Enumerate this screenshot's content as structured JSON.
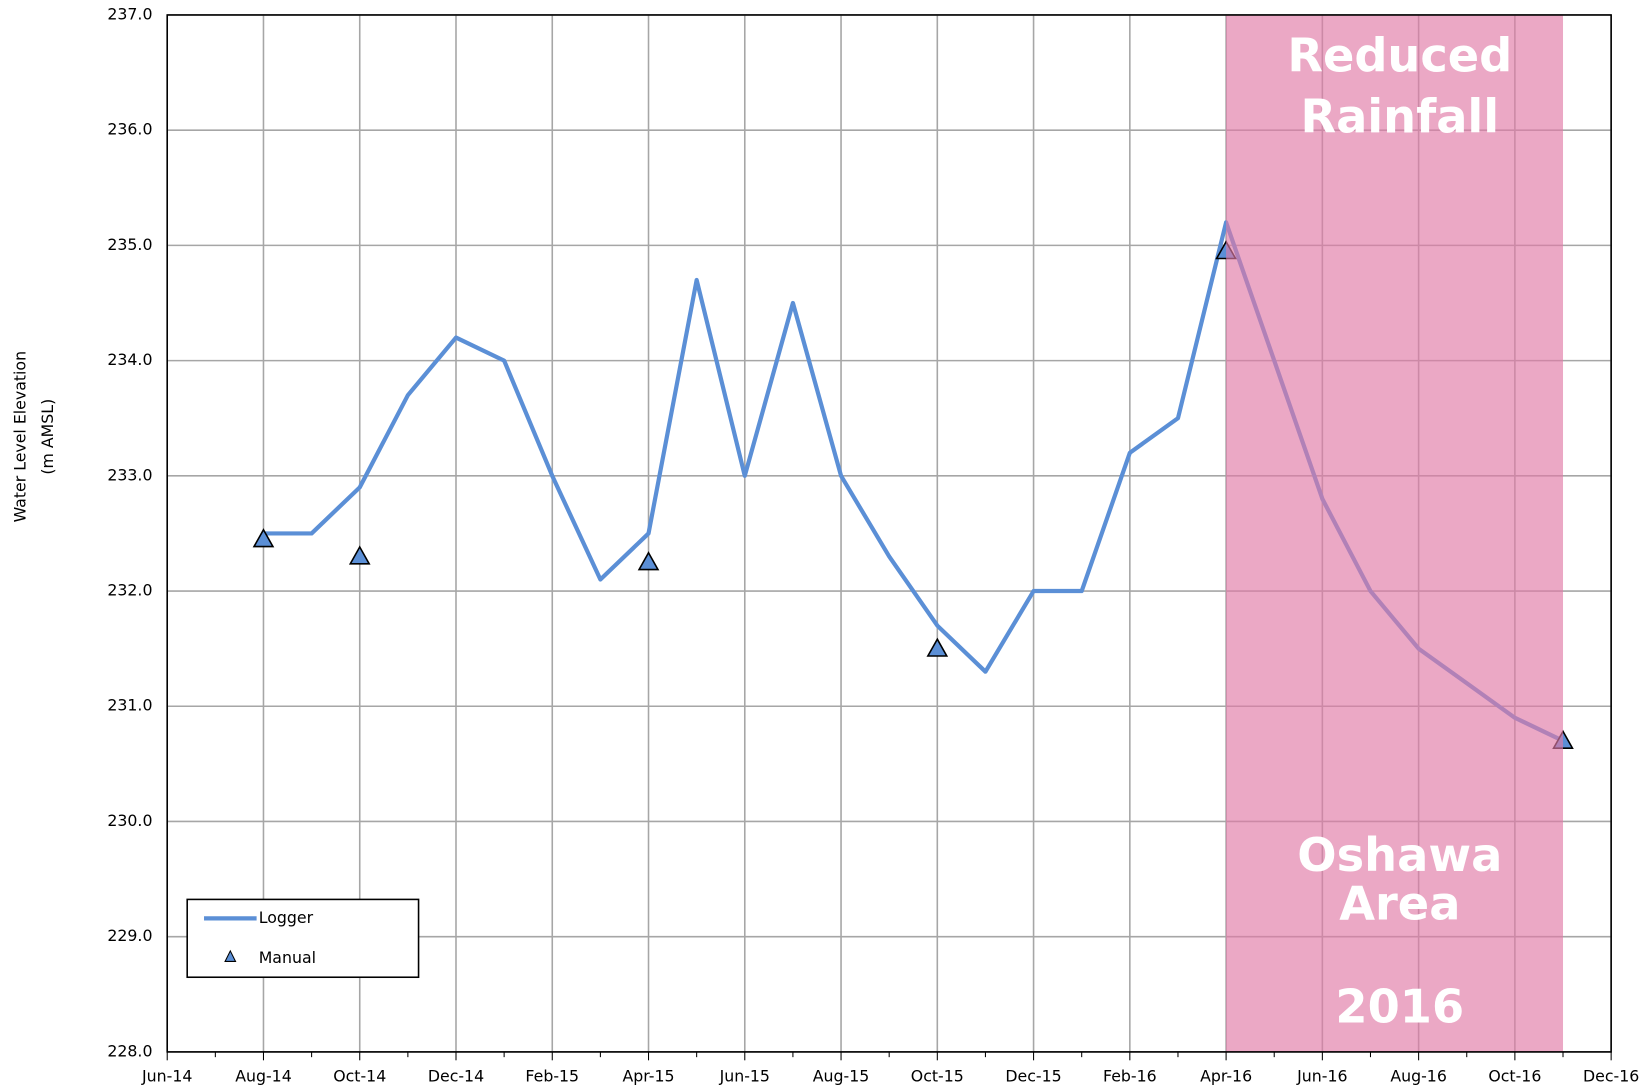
{
  "chart_data": {
    "type": "line",
    "y_label": [
      "Water Level Elevation",
      "(m AMSL)"
    ],
    "ylim": [
      228,
      237
    ],
    "yticks": [
      {
        "value": 228,
        "label": "228.0"
      },
      {
        "value": 229,
        "label": "229.0"
      },
      {
        "value": 230,
        "label": "230.0"
      },
      {
        "value": 231,
        "label": "231.0"
      },
      {
        "value": 232,
        "label": "232.0"
      },
      {
        "value": 233,
        "label": "233.0"
      },
      {
        "value": 234,
        "label": "234.0"
      },
      {
        "value": 235,
        "label": "235.0"
      },
      {
        "value": 236,
        "label": "236.0"
      },
      {
        "value": 237,
        "label": "237.0"
      }
    ],
    "xlim": [
      "2014-06",
      "2016-12"
    ],
    "xticks": [
      {
        "value": "2014-06",
        "label": "Jun-14"
      },
      {
        "value": "2014-08",
        "label": "Aug-14"
      },
      {
        "value": "2014-10",
        "label": "Oct-14"
      },
      {
        "value": "2014-12",
        "label": "Dec-14"
      },
      {
        "value": "2015-02",
        "label": "Feb-15"
      },
      {
        "value": "2015-04",
        "label": "Apr-15"
      },
      {
        "value": "2015-06",
        "label": "Jun-15"
      },
      {
        "value": "2015-08",
        "label": "Aug-15"
      },
      {
        "value": "2015-10",
        "label": "Oct-15"
      },
      {
        "value": "2015-12",
        "label": "Dec-15"
      },
      {
        "value": "2016-02",
        "label": "Feb-16"
      },
      {
        "value": "2016-04",
        "label": "Apr-16"
      },
      {
        "value": "2016-06",
        "label": "Jun-16"
      },
      {
        "value": "2016-08",
        "label": "Aug-16"
      },
      {
        "value": "2016-10",
        "label": "Oct-16"
      },
      {
        "value": "2016-12",
        "label": "Dec-16"
      }
    ],
    "grid": true,
    "legend": "lower left",
    "shaded_region": {
      "x": [
        "2016-04",
        "2016-11"
      ],
      "color": "#e07aa6"
    },
    "annotations": [
      [
        "Reduced",
        "Rainfall"
      ],
      [
        "Oshawa",
        "Area"
      ],
      [
        "2016"
      ]
    ],
    "series": [
      {
        "name": "Logger",
        "color": "#5b8fd6",
        "x": [
          "2014-08",
          "2014-09",
          "2014-10",
          "2014-11",
          "2014-12",
          "2015-01",
          "2015-02",
          "2015-03",
          "2015-04",
          "2015-05",
          "2015-06",
          "2015-07",
          "2015-08",
          "2015-09",
          "2015-10",
          "2015-11",
          "2015-12",
          "2016-01",
          "2016-02",
          "2016-03",
          "2016-04",
          "2016-05",
          "2016-06",
          "2016-07",
          "2016-08",
          "2016-09",
          "2016-10",
          "2016-11"
        ],
        "values": [
          232.5,
          232.5,
          232.9,
          233.7,
          234.2,
          234.0,
          233.0,
          232.1,
          232.5,
          234.7,
          233.0,
          234.5,
          233.0,
          232.3,
          231.7,
          231.3,
          232.0,
          232.0,
          233.2,
          233.5,
          235.2,
          234.0,
          232.8,
          232.0,
          231.5,
          231.2,
          230.9,
          230.7
        ]
      },
      {
        "name": "Manual",
        "color": "#5b8fd6",
        "x": [
          "2014-08",
          "2014-10",
          "2015-04",
          "2015-10",
          "2016-04",
          "2016-11"
        ],
        "values": [
          232.45,
          232.3,
          232.25,
          231.5,
          234.95,
          230.7
        ]
      }
    ]
  }
}
